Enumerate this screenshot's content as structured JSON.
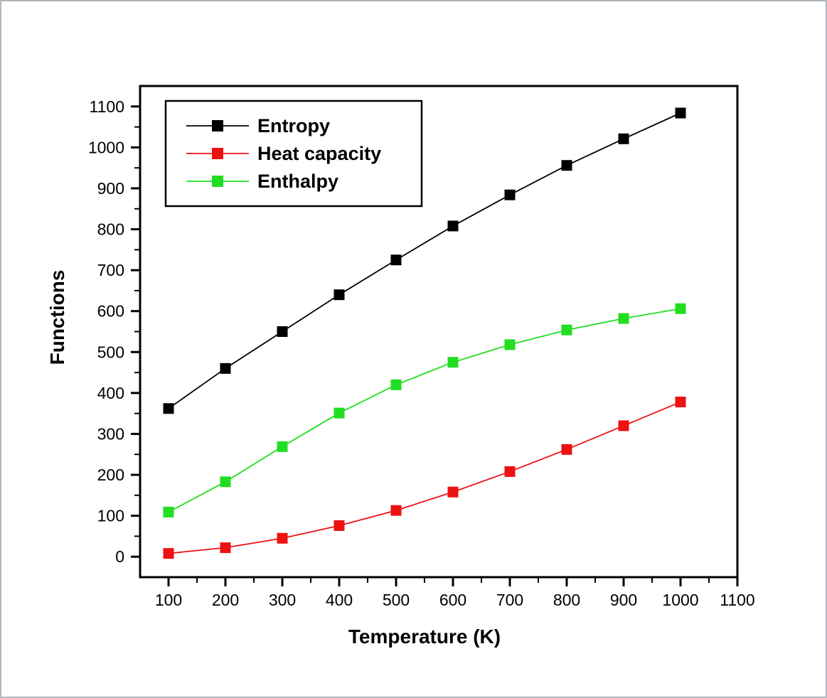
{
  "figure": {
    "background_color": "#ffffff",
    "border_color": "#b0b6bc",
    "plot_box_color": "#000000",
    "legend_border_color": "#000000",
    "legend_background_color": "#ffffff"
  },
  "chart_data": {
    "type": "line",
    "title": "",
    "xlabel": "Temperature (K)",
    "ylabel": "Functions",
    "x": [
      100,
      200,
      300,
      400,
      500,
      600,
      700,
      800,
      900,
      1000
    ],
    "series": [
      {
        "name": "Entropy",
        "color": "#000000",
        "marker": "square",
        "values": [
          362,
          460,
          550,
          640,
          725,
          808,
          884,
          956,
          1021,
          1084
        ]
      },
      {
        "name": "Heat capacity",
        "color": "#ee1111",
        "marker": "square",
        "values": [
          8,
          22,
          45,
          76,
          113,
          158,
          208,
          262,
          320,
          378
        ]
      },
      {
        "name": "Enthalpy",
        "color": "#22dd22",
        "marker": "square",
        "values": [
          109,
          183,
          269,
          351,
          420,
          475,
          518,
          554,
          582,
          606
        ]
      }
    ],
    "xlim": [
      50,
      1100
    ],
    "ylim": [
      -50,
      1150
    ],
    "x_ticks": [
      100,
      200,
      300,
      400,
      500,
      600,
      700,
      800,
      900,
      1000,
      1100
    ],
    "y_ticks": [
      0,
      100,
      200,
      300,
      400,
      500,
      600,
      700,
      800,
      900,
      1000,
      1100
    ],
    "x_minor_ticks": [
      150,
      250,
      350,
      450,
      550,
      650,
      750,
      850,
      950,
      1050
    ],
    "y_minor_ticks": [
      50,
      150,
      250,
      350,
      450,
      550,
      650,
      750,
      850,
      950,
      1050
    ],
    "grid": false,
    "legend_position": "top-left"
  }
}
